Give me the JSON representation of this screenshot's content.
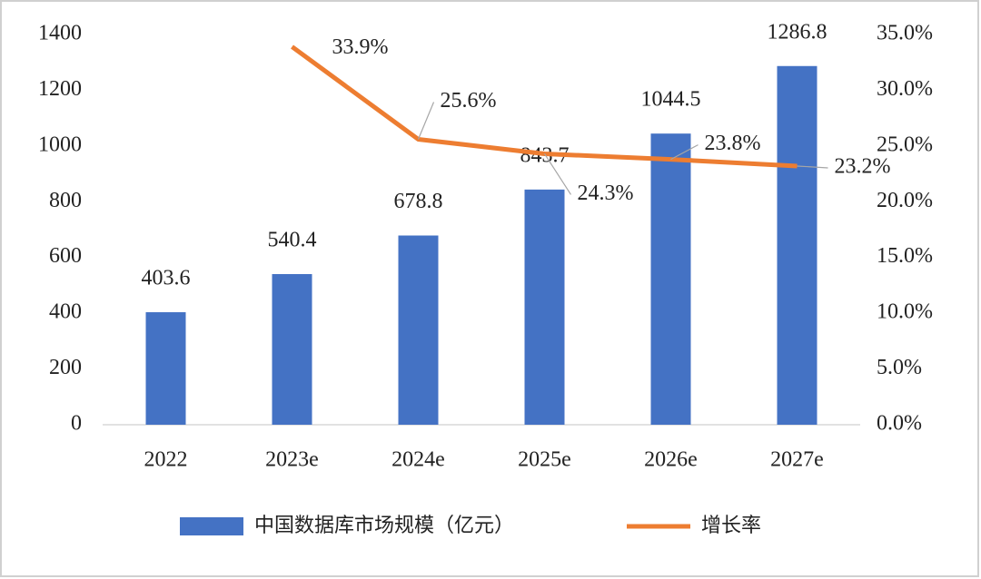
{
  "chart_data": {
    "type": "bar",
    "categories": [
      "2022",
      "2023e",
      "2024e",
      "2025e",
      "2026e",
      "2027e"
    ],
    "series": [
      {
        "name": "中国数据库市场规模（亿元）",
        "type": "bar",
        "color": "#4472c4",
        "values": [
          403.6,
          540.4,
          678.8,
          843.7,
          1044.5,
          1286.8
        ]
      },
      {
        "name": "增长率",
        "type": "line",
        "axis": "y2",
        "color": "#ed7d31",
        "values": [
          null,
          33.9,
          25.6,
          24.3,
          23.8,
          23.2
        ],
        "value_labels": [
          null,
          "33.9%",
          "25.6%",
          "24.3%",
          "23.8%",
          "23.2%"
        ]
      }
    ],
    "ylim": [
      0,
      1400
    ],
    "yticks": [
      0,
      200,
      400,
      600,
      800,
      1000,
      1200,
      1400
    ],
    "y2lim": [
      0,
      35
    ],
    "y2ticks": [
      {
        "value": 0,
        "label": "0.0%"
      },
      {
        "value": 5,
        "label": "5.0%"
      },
      {
        "value": 10,
        "label": "10.0%"
      },
      {
        "value": 15,
        "label": "15.0%"
      },
      {
        "value": 20,
        "label": "20.0%"
      },
      {
        "value": 25,
        "label": "25.0%"
      },
      {
        "value": 30,
        "label": "30.0%"
      },
      {
        "value": 35,
        "label": "35.0%"
      }
    ],
    "legend": "bottom"
  }
}
